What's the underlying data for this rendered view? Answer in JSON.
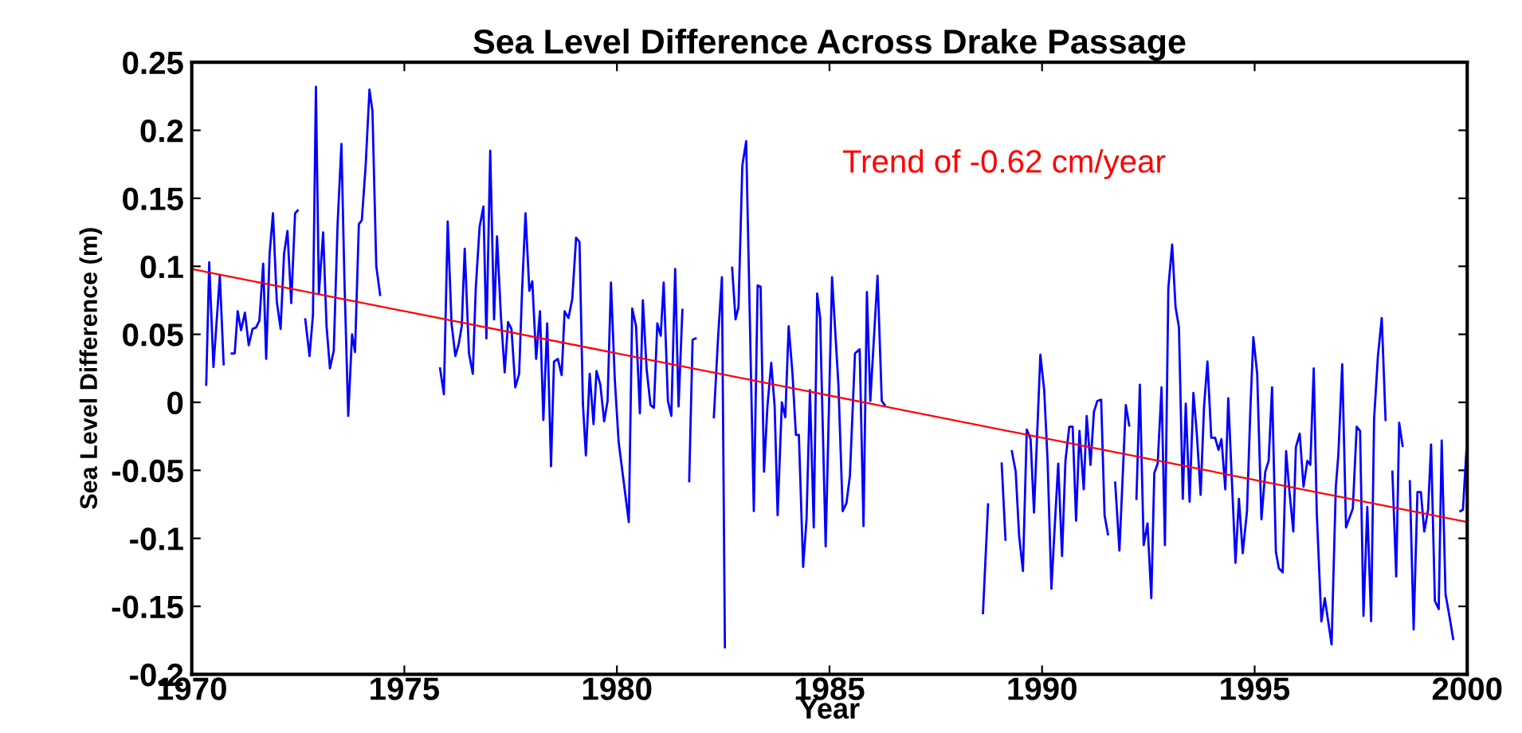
{
  "chart_data": {
    "type": "line",
    "title": "Sea Level Difference Across Drake Passage",
    "xlabel": "Year",
    "ylabel": "Sea Level Difference (m)",
    "annotations": [
      "Trend of -0.62 cm/year"
    ],
    "xlim": [
      1970,
      2000
    ],
    "xticks": [
      1970,
      1975,
      1980,
      1985,
      1990,
      1995,
      2000
    ],
    "ylim": [
      -0.2,
      0.25
    ],
    "yticks": [
      -0.2,
      -0.15,
      -0.1,
      -0.05,
      0,
      0.05,
      0.1,
      0.15,
      0.2,
      0.25
    ],
    "grid": false,
    "series": [
      {
        "color": "#0000ff",
        "x": [
          1970.34,
          1970.41,
          1970.51,
          1970.66,
          1970.75,
          1970.85,
          1970.94,
          1971.01,
          1971.08,
          1971.16,
          1971.25,
          1971.34,
          1971.43,
          1971.51,
          1971.59,
          1971.68,
          1971.75,
          1971.83,
          1971.91,
          1972.0,
          1972.09,
          1972.17,
          1972.25,
          1972.34,
          1972.43,
          1972.49,
          1972.58,
          1972.67,
          1972.77,
          1972.85,
          1972.92,
          1972.99,
          1973.09,
          1973.17,
          1973.25,
          1973.34,
          1973.43,
          1973.52,
          1973.59,
          1973.68,
          1973.77,
          1973.84,
          1973.93,
          1974.0,
          1974.09,
          1974.18,
          1974.25,
          1974.34,
          1974.43,
          1975.0,
          1975.84,
          1975.93,
          1976.02,
          1976.11,
          1976.2,
          1976.28,
          1976.35,
          1976.42,
          1976.52,
          1976.61,
          1976.68,
          1976.77,
          1976.86,
          1976.93,
          1977.02,
          1977.11,
          1977.18,
          1977.27,
          1977.36,
          1977.44,
          1977.52,
          1977.61,
          1977.7,
          1977.77,
          1977.85,
          1977.94,
          1978.01,
          1978.1,
          1978.19,
          1978.27,
          1978.36,
          1978.45,
          1978.52,
          1978.61,
          1978.7,
          1978.77,
          1978.86,
          1978.95,
          1979.04,
          1979.12,
          1979.2,
          1979.27,
          1979.36,
          1979.45,
          1979.52,
          1979.61,
          1979.7,
          1979.78,
          1979.86,
          1979.95,
          1980.04,
          1980.28,
          1980.36,
          1980.45,
          1980.54,
          1980.61,
          1980.7,
          1980.79,
          1980.87,
          1980.95,
          1981.03,
          1981.1,
          1981.2,
          1981.28,
          1981.37,
          1981.45,
          1981.54,
          1981.62,
          1981.7,
          1981.78,
          1981.85,
          1982.0,
          1982.28,
          1982.38,
          1982.47,
          1982.54,
          1982.62,
          1982.71,
          1982.79,
          1982.86,
          1982.95,
          1983.04,
          1983.22,
          1983.31,
          1983.38,
          1983.46,
          1983.54,
          1983.63,
          1983.71,
          1983.78,
          1983.88,
          1983.96,
          1984.04,
          1984.13,
          1984.21,
          1984.28,
          1984.38,
          1984.46,
          1984.54,
          1984.63,
          1984.71,
          1984.78,
          1984.91,
          1985.06,
          1985.21,
          1985.31,
          1985.4,
          1985.48,
          1985.6,
          1985.71,
          1985.8,
          1985.88,
          1985.96,
          1986.13,
          1986.23,
          1986.3,
          1987.5,
          1988.61,
          1988.73,
          1988.9,
          1989.05,
          1989.14,
          1989.2,
          1989.29,
          1989.38,
          1989.46,
          1989.55,
          1989.64,
          1989.73,
          1989.81,
          1989.96,
          1990.05,
          1990.13,
          1990.22,
          1990.3,
          1990.38,
          1990.47,
          1990.55,
          1990.64,
          1990.72,
          1990.8,
          1990.88,
          1990.98,
          1991.05,
          1991.14,
          1991.22,
          1991.3,
          1991.39,
          1991.47,
          1991.55,
          1991.63,
          1991.72,
          1991.82,
          1991.97,
          1992.05,
          1992.13,
          1992.22,
          1992.3,
          1992.39,
          1992.48,
          1992.57,
          1992.64,
          1992.72,
          1992.81,
          1992.89,
          1992.97,
          1993.06,
          1993.14,
          1993.22,
          1993.31,
          1993.38,
          1993.47,
          1993.56,
          1993.64,
          1993.73,
          1993.81,
          1993.89,
          1993.98,
          1994.07,
          1994.15,
          1994.22,
          1994.31,
          1994.38,
          1994.55,
          1994.63,
          1994.72,
          1994.82,
          1994.9,
          1994.97,
          1995.06,
          1995.16,
          1995.25,
          1995.33,
          1995.41,
          1995.5,
          1995.57,
          1995.66,
          1995.74,
          1995.82,
          1995.91,
          1995.97,
          1996.06,
          1996.15,
          1996.24,
          1996.31,
          1996.39,
          1996.46,
          1996.57,
          1996.65,
          1996.81,
          1996.91,
          1996.97,
          1997.06,
          1997.15,
          1997.31,
          1997.4,
          1997.48,
          1997.56,
          1997.65,
          1997.74,
          1997.81,
          1997.9,
          1997.99,
          1998.08,
          1998.16,
          1998.24,
          1998.33,
          1998.4,
          1998.48,
          1998.56,
          1998.65,
          1998.74,
          1998.83,
          1998.91,
          1998.99,
          1999.08,
          1999.15,
          1999.24,
          1999.33,
          1999.4,
          1999.49,
          1999.58,
          1999.67,
          1999.76,
          1999.84,
          1999.9,
          1999.98
        ],
        "values": [
          0.013,
          0.103,
          0.026,
          0.093,
          0.028,
          null,
          0.036,
          0.036,
          0.067,
          0.053,
          0.066,
          0.042,
          0.054,
          0.055,
          0.06,
          0.102,
          0.032,
          0.109,
          0.139,
          0.074,
          0.054,
          0.109,
          0.126,
          0.073,
          0.139,
          0.141,
          null,
          0.061,
          0.034,
          0.064,
          0.232,
          0.08,
          0.125,
          0.056,
          0.025,
          0.038,
          0.131,
          0.19,
          0.091,
          -0.01,
          0.05,
          0.037,
          0.131,
          0.134,
          0.174,
          0.23,
          0.214,
          0.1,
          0.079,
          null,
          0.025,
          0.006,
          0.133,
          0.058,
          0.034,
          0.043,
          0.056,
          0.113,
          0.036,
          0.021,
          0.084,
          0.129,
          0.144,
          0.047,
          0.185,
          0.061,
          0.122,
          0.064,
          0.022,
          0.059,
          0.054,
          0.011,
          0.021,
          0.083,
          0.139,
          0.082,
          0.089,
          0.032,
          0.067,
          -0.013,
          0.058,
          -0.047,
          0.03,
          0.032,
          0.02,
          0.067,
          0.062,
          0.076,
          0.121,
          0.118,
          -0.001,
          -0.039,
          0.021,
          -0.016,
          0.023,
          0.013,
          -0.014,
          0.001,
          0.088,
          0.017,
          -0.029,
          -0.088,
          0.069,
          0.056,
          -0.008,
          0.075,
          0.024,
          -0.002,
          -0.004,
          0.058,
          0.049,
          0.088,
          0.001,
          -0.01,
          0.098,
          -0.003,
          0.068,
          null,
          -0.058,
          0.046,
          0.047,
          null,
          -0.011,
          0.048,
          0.092,
          -0.18,
          null,
          0.099,
          0.061,
          0.07,
          0.174,
          0.192,
          -0.08,
          0.086,
          0.085,
          -0.051,
          -0.003,
          0.029,
          -0.003,
          -0.083,
          0.0,
          -0.011,
          0.056,
          0.021,
          -0.024,
          -0.024,
          -0.121,
          -0.086,
          0.009,
          -0.092,
          0.08,
          0.062,
          -0.106,
          0.092,
          0.013,
          -0.08,
          -0.074,
          -0.054,
          0.036,
          0.039,
          -0.091,
          0.081,
          0.001,
          0.093,
          0.001,
          -0.002,
          null,
          -0.155,
          -0.075,
          null,
          -0.045,
          -0.101,
          null,
          -0.036,
          -0.051,
          -0.098,
          -0.124,
          -0.02,
          -0.027,
          -0.081,
          0.035,
          0.009,
          -0.043,
          -0.137,
          -0.09,
          -0.045,
          -0.113,
          -0.043,
          -0.018,
          -0.018,
          -0.087,
          -0.021,
          -0.064,
          -0.01,
          -0.046,
          -0.007,
          0.001,
          0.002,
          -0.083,
          -0.097,
          null,
          -0.059,
          -0.109,
          -0.002,
          -0.017,
          null,
          -0.071,
          0.013,
          -0.105,
          -0.089,
          -0.144,
          -0.052,
          -0.045,
          0.011,
          -0.105,
          0.084,
          0.116,
          0.07,
          0.055,
          -0.071,
          -0.001,
          -0.073,
          0.007,
          -0.023,
          -0.068,
          -0.003,
          0.03,
          -0.026,
          -0.026,
          -0.035,
          -0.027,
          -0.064,
          0.003,
          -0.118,
          -0.071,
          -0.111,
          -0.08,
          -0.005,
          0.048,
          0.021,
          -0.086,
          -0.051,
          -0.043,
          0.011,
          -0.11,
          -0.122,
          -0.125,
          -0.036,
          -0.066,
          -0.095,
          -0.033,
          -0.023,
          -0.062,
          -0.043,
          -0.046,
          0.025,
          -0.08,
          -0.161,
          -0.144,
          -0.178,
          -0.062,
          -0.038,
          0.028,
          -0.092,
          -0.078,
          -0.018,
          -0.021,
          -0.157,
          -0.077,
          -0.161,
          -0.012,
          0.034,
          0.062,
          -0.013,
          null,
          -0.051,
          -0.128,
          -0.015,
          -0.032,
          null,
          -0.058,
          -0.167,
          -0.066,
          -0.066,
          -0.095,
          -0.079,
          -0.031,
          -0.146,
          -0.152,
          -0.028,
          -0.141,
          -0.157,
          -0.174,
          null,
          -0.08,
          -0.079,
          -0.036
        ]
      },
      {
        "color": "#ff0000",
        "x": [
          1970,
          2000
        ],
        "values": [
          0.098,
          -0.088
        ]
      }
    ]
  }
}
